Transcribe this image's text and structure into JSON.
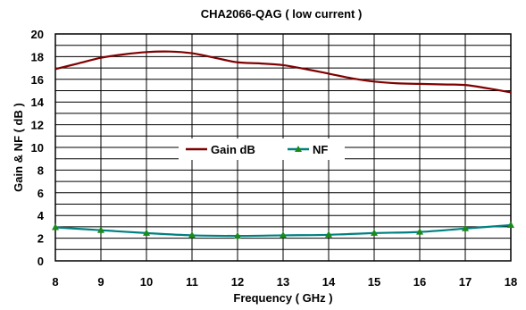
{
  "chart_data": {
    "type": "line",
    "title": "CHA2066-QAG ( low current )",
    "xlabel": "Frequency ( GHz )",
    "ylabel": "Gain & NF ( dB )",
    "xlim": [
      8,
      18
    ],
    "ylim": [
      0,
      20
    ],
    "x_ticks": [
      "8",
      "9",
      "10",
      "11",
      "12",
      "13",
      "14",
      "15",
      "16",
      "17",
      "18"
    ],
    "y_ticks": [
      "0",
      "2",
      "4",
      "6",
      "8",
      "10",
      "12",
      "14",
      "16",
      "18",
      "20"
    ],
    "grid": true,
    "legend_position": "center",
    "series": [
      {
        "name": "Gain dB",
        "color": "#800000",
        "marker": "none",
        "x": [
          8,
          8.5,
          9,
          9.5,
          10,
          10.5,
          11,
          11.5,
          12,
          12.5,
          13,
          13.5,
          14,
          14.5,
          15,
          15.5,
          16,
          16.5,
          17,
          17.5,
          18
        ],
        "y": [
          16.9,
          17.4,
          17.9,
          18.2,
          18.4,
          18.45,
          18.3,
          17.9,
          17.5,
          17.4,
          17.25,
          16.9,
          16.5,
          16.1,
          15.8,
          15.65,
          15.6,
          15.55,
          15.5,
          15.2,
          14.85
        ]
      },
      {
        "name": "NF",
        "color": "#008080",
        "marker": "triangle",
        "marker_color": "#1a8a1a",
        "x": [
          8,
          9,
          10,
          11,
          12,
          13,
          14,
          15,
          16,
          17,
          18
        ],
        "y": [
          2.95,
          2.7,
          2.45,
          2.25,
          2.2,
          2.25,
          2.3,
          2.45,
          2.55,
          2.85,
          3.15
        ]
      }
    ]
  }
}
